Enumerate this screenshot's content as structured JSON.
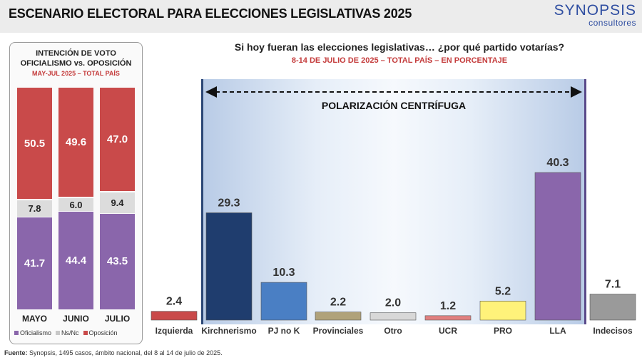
{
  "header": {
    "title": "ESCENARIO ELECTORAL PARA ELECCIONES LEGISLATIVAS 2025",
    "brand_name": "SYNOPSIS",
    "brand_sub": "consultores"
  },
  "colors": {
    "officialism": "#8a66ab",
    "ns_nc": "#dcdcdc",
    "opposition": "#c94a4a"
  },
  "left_panel": {
    "title_line1": "INTENCIÓN DE VOTO",
    "title_line2": "OFICIALISMO vs. OPOSICIÓN",
    "subtitle": "MAY-JUL 2025 – TOTAL PAÍS",
    "legend": [
      "Oficialismo",
      "Ns/Nc",
      "Oposición"
    ]
  },
  "question": {
    "title": "Si hoy fueran las elecciones legislativas… ¿por qué partido votarías?",
    "subtitle": "8-14 DE JULIO DE 2025 – TOTAL PAÍS – EN PORCENTAJE"
  },
  "polarization_label": "POLARIZACIÓN CENTRÍFUGA",
  "chart_data": [
    {
      "type": "bar",
      "stacked": true,
      "categories": [
        "MAYO",
        "JUNIO",
        "JULIO"
      ],
      "series": [
        {
          "name": "Oficialismo",
          "values": [
            41.7,
            44.4,
            43.5
          ],
          "labels": [
            "41.7",
            "44.4",
            "43.5"
          ],
          "color": "#8a66ab"
        },
        {
          "name": "Ns/Nc",
          "values": [
            7.8,
            6.0,
            9.4
          ],
          "labels": [
            "7.8",
            "6.0",
            "9.4"
          ],
          "color": "#dcdcdc"
        },
        {
          "name": "Oposición",
          "values": [
            50.5,
            49.6,
            47.0
          ],
          "labels": [
            "50.5",
            "49.6",
            "47.0"
          ],
          "color": "#c94a4a"
        }
      ],
      "ylim": [
        0,
        100
      ]
    },
    {
      "type": "bar",
      "categories": [
        "Izquierda",
        "Kirchnerismo",
        "PJ no K",
        "Provinciales",
        "Otro",
        "UCR",
        "PRO",
        "LLA",
        "Indecisos"
      ],
      "values": [
        2.4,
        29.3,
        10.3,
        2.2,
        2.0,
        1.2,
        5.2,
        40.3,
        7.1
      ],
      "value_labels": [
        "2.4",
        "29.3",
        "10.3",
        "2.2",
        "2.0",
        "1.2",
        "5.2",
        "40.3",
        "7.1"
      ],
      "colors": [
        "#c94a4a",
        "#1f3d6e",
        "#4a7fc4",
        "#b0a27a",
        "#d8d8d8",
        "#e08080",
        "#fff27a",
        "#8a66ab",
        "#9a9a9a"
      ],
      "ylim": [
        0,
        40.3
      ]
    }
  ],
  "source": {
    "label": "Fuente:",
    "text": " Synopsis, 1495 casos, ámbito nacional, del 8 al 14 de julio de 2025."
  }
}
